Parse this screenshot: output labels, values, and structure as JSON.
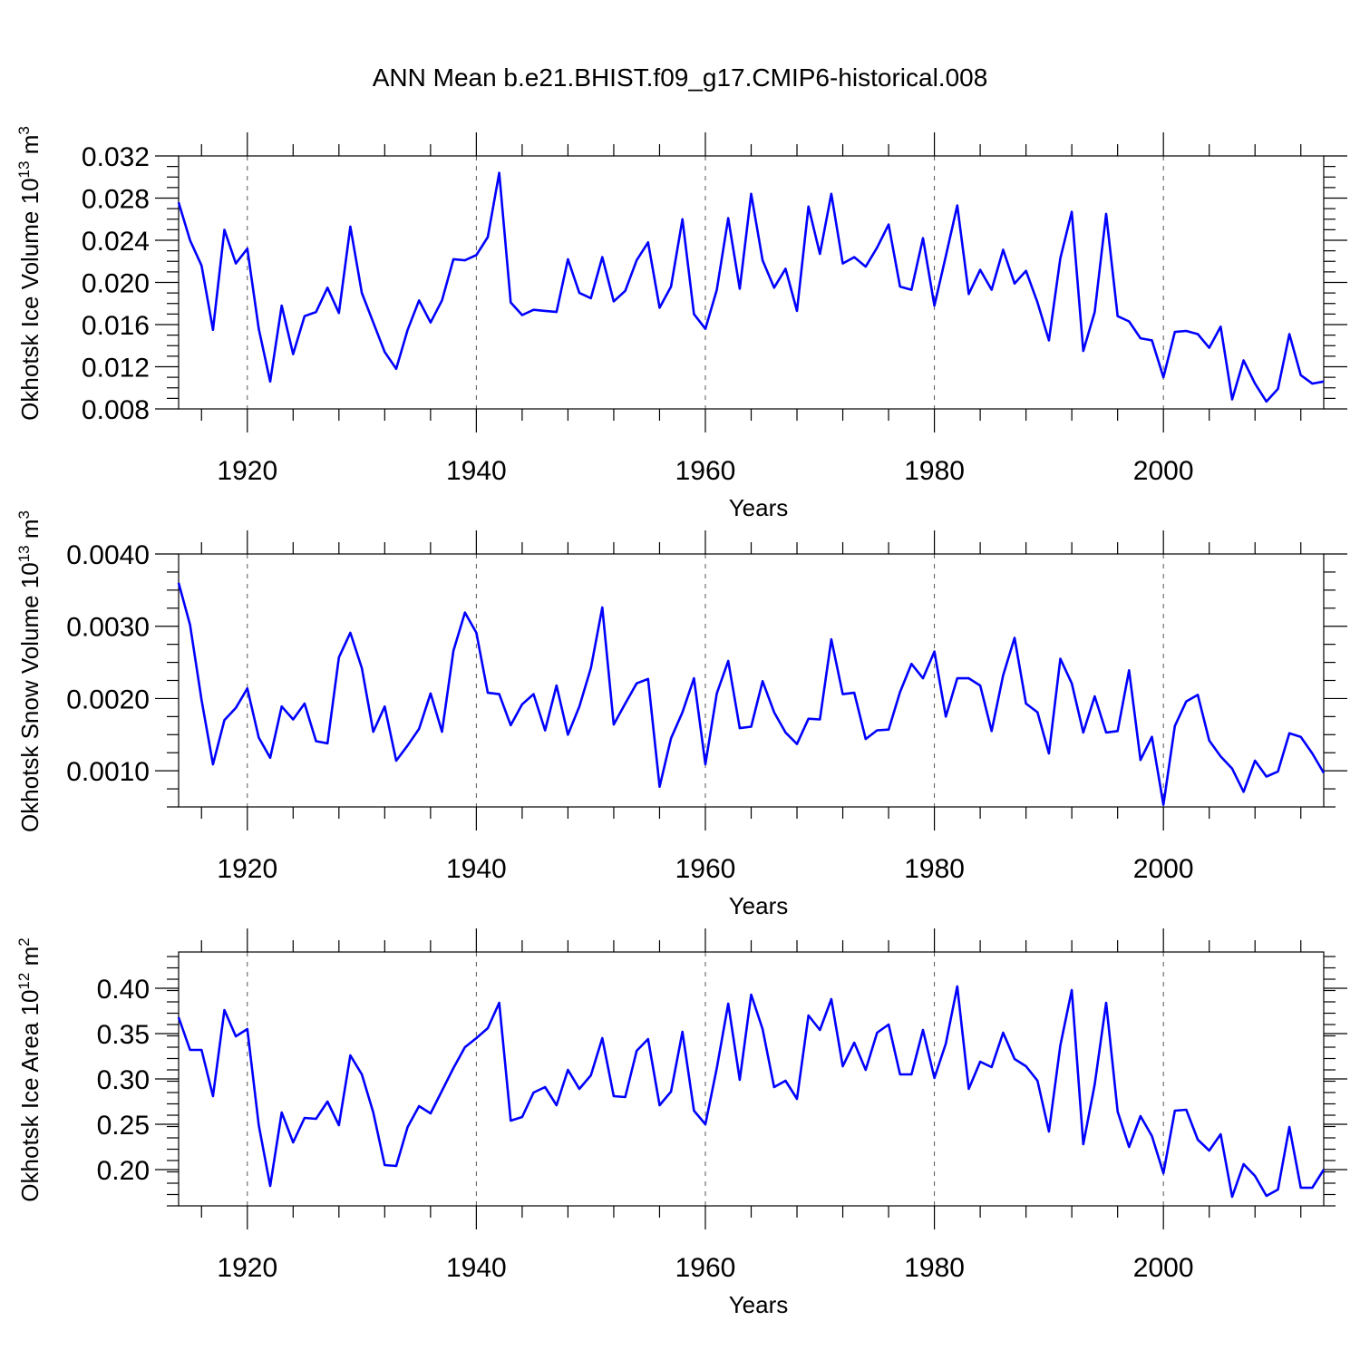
{
  "title": "ANN Mean b.e21.BHIST.f09_g17.CMIP6-historical.008",
  "chart_data": [
    {
      "type": "line",
      "xlabel": "Years",
      "ylabel": "Okhotsk Ice Volume 10",
      "ylabel_exp": "13",
      "ylabel_unit": " m",
      "ylabel_unit_exp": "3",
      "xlim": [
        1914,
        2014
      ],
      "ylim": [
        0.008,
        0.032
      ],
      "yticks": [
        0.008,
        0.012,
        0.016,
        0.02,
        0.024,
        0.028,
        0.032
      ],
      "ytick_labels": [
        "0.008",
        "0.012",
        "0.016",
        "0.020",
        "0.024",
        "0.028",
        "0.032"
      ],
      "xticks": [
        1920,
        1940,
        1960,
        1980,
        2000
      ],
      "xtick_labels": [
        "1920",
        "1940",
        "1960",
        "1980",
        "2000"
      ],
      "grid": "dashed vertical at major x ticks",
      "color": "#0000ff",
      "x": [
        1914,
        1915,
        1916,
        1917,
        1918,
        1919,
        1920,
        1921,
        1922,
        1923,
        1924,
        1925,
        1926,
        1927,
        1928,
        1929,
        1930,
        1931,
        1932,
        1933,
        1934,
        1935,
        1936,
        1937,
        1938,
        1939,
        1940,
        1941,
        1942,
        1943,
        1944,
        1945,
        1946,
        1947,
        1948,
        1949,
        1950,
        1951,
        1952,
        1953,
        1954,
        1955,
        1956,
        1957,
        1958,
        1959,
        1960,
        1961,
        1962,
        1963,
        1964,
        1965,
        1966,
        1967,
        1968,
        1969,
        1970,
        1971,
        1972,
        1973,
        1974,
        1975,
        1976,
        1977,
        1978,
        1979,
        1980,
        1981,
        1982,
        1983,
        1984,
        1985,
        1986,
        1987,
        1988,
        1989,
        1990,
        1991,
        1992,
        1993,
        1994,
        1995,
        1996,
        1997,
        1998,
        1999,
        2000,
        2001,
        2002,
        2003,
        2004,
        2005,
        2006,
        2007,
        2008,
        2009,
        2010,
        2011,
        2012,
        2013,
        2014
      ],
      "values": [
        0.0276,
        0.024,
        0.0216,
        0.0155,
        0.025,
        0.0218,
        0.0232,
        0.0156,
        0.0106,
        0.0178,
        0.0132,
        0.0168,
        0.0172,
        0.0195,
        0.0171,
        0.0253,
        0.019,
        0.0162,
        0.0134,
        0.0118,
        0.0155,
        0.0183,
        0.0162,
        0.0183,
        0.0222,
        0.0221,
        0.0226,
        0.0243,
        0.0304,
        0.0181,
        0.0169,
        0.0174,
        0.0173,
        0.0172,
        0.0222,
        0.019,
        0.0185,
        0.0224,
        0.0182,
        0.0192,
        0.0221,
        0.0238,
        0.0176,
        0.0196,
        0.026,
        0.017,
        0.0156,
        0.0193,
        0.0261,
        0.0194,
        0.0284,
        0.0221,
        0.0195,
        0.0213,
        0.0173,
        0.0272,
        0.0227,
        0.0284,
        0.0218,
        0.0224,
        0.0215,
        0.0233,
        0.0255,
        0.0196,
        0.0193,
        0.0242,
        0.0178,
        0.0225,
        0.0273,
        0.0189,
        0.0212,
        0.0193,
        0.0231,
        0.0199,
        0.0211,
        0.0181,
        0.0145,
        0.0223,
        0.0267,
        0.0135,
        0.0172,
        0.0265,
        0.0168,
        0.0163,
        0.0147,
        0.0145,
        0.011,
        0.0153,
        0.0154,
        0.0151,
        0.0138,
        0.0158,
        0.0089,
        0.0126,
        0.0104,
        0.0087,
        0.0099,
        0.0151,
        0.0112,
        0.0104,
        0.0106
      ]
    },
    {
      "type": "line",
      "xlabel": "Years",
      "ylabel": "Okhotsk Snow Volume 10",
      "ylabel_exp": "13",
      "ylabel_unit": " m",
      "ylabel_unit_exp": "3",
      "xlim": [
        1914,
        2014
      ],
      "ylim": [
        0.0005,
        0.004
      ],
      "yticks": [
        0.001,
        0.002,
        0.003,
        0.004
      ],
      "ytick_labels": [
        "0.0010",
        "0.0020",
        "0.0030",
        "0.0040"
      ],
      "xticks": [
        1920,
        1940,
        1960,
        1980,
        2000
      ],
      "xtick_labels": [
        "1920",
        "1940",
        "1960",
        "1980",
        "2000"
      ],
      "grid": "dashed vertical at major x ticks",
      "color": "#0000ff",
      "x": [
        1914,
        1915,
        1916,
        1917,
        1918,
        1919,
        1920,
        1921,
        1922,
        1923,
        1924,
        1925,
        1926,
        1927,
        1928,
        1929,
        1930,
        1931,
        1932,
        1933,
        1934,
        1935,
        1936,
        1937,
        1938,
        1939,
        1940,
        1941,
        1942,
        1943,
        1944,
        1945,
        1946,
        1947,
        1948,
        1949,
        1950,
        1951,
        1952,
        1953,
        1954,
        1955,
        1956,
        1957,
        1958,
        1959,
        1960,
        1961,
        1962,
        1963,
        1964,
        1965,
        1966,
        1967,
        1968,
        1969,
        1970,
        1971,
        1972,
        1973,
        1974,
        1975,
        1976,
        1977,
        1978,
        1979,
        1980,
        1981,
        1982,
        1983,
        1984,
        1985,
        1986,
        1987,
        1988,
        1989,
        1990,
        1991,
        1992,
        1993,
        1994,
        1995,
        1996,
        1997,
        1998,
        1999,
        2000,
        2001,
        2002,
        2003,
        2004,
        2005,
        2006,
        2007,
        2008,
        2009,
        2010,
        2011,
        2012,
        2013,
        2014
      ],
      "values": [
        0.0036,
        0.00302,
        0.00198,
        0.00109,
        0.0017,
        0.00187,
        0.00214,
        0.00146,
        0.00118,
        0.00189,
        0.00171,
        0.00193,
        0.00141,
        0.00138,
        0.00257,
        0.00291,
        0.00242,
        0.00154,
        0.00189,
        0.00114,
        0.00135,
        0.00158,
        0.00207,
        0.00154,
        0.00266,
        0.00319,
        0.00291,
        0.00208,
        0.00206,
        0.00163,
        0.00192,
        0.00206,
        0.00156,
        0.00218,
        0.0015,
        0.00189,
        0.00242,
        0.00326,
        0.00164,
        0.00193,
        0.00221,
        0.00227,
        0.00078,
        0.00145,
        0.00181,
        0.00228,
        0.00109,
        0.00207,
        0.00252,
        0.00159,
        0.00161,
        0.00224,
        0.00181,
        0.00153,
        0.00137,
        0.00172,
        0.00171,
        0.00282,
        0.00206,
        0.00208,
        0.00144,
        0.00156,
        0.00157,
        0.00209,
        0.00248,
        0.00228,
        0.00265,
        0.00175,
        0.00228,
        0.00228,
        0.00218,
        0.00155,
        0.00232,
        0.00284,
        0.00193,
        0.00181,
        0.00124,
        0.00255,
        0.00221,
        0.00153,
        0.00203,
        0.00153,
        0.00155,
        0.00239,
        0.00115,
        0.00147,
        0.00053,
        0.00162,
        0.00196,
        0.00205,
        0.00142,
        0.0012,
        0.00103,
        0.00071,
        0.00114,
        0.00092,
        0.00099,
        0.00152,
        0.00147,
        0.00124,
        0.00097
      ]
    },
    {
      "type": "line",
      "xlabel": "Years",
      "ylabel": "Okhotsk Ice Area 10",
      "ylabel_exp": "12",
      "ylabel_unit": " m",
      "ylabel_unit_exp": "2",
      "xlim": [
        1914,
        2014
      ],
      "ylim": [
        0.16,
        0.44
      ],
      "yticks": [
        0.2,
        0.25,
        0.3,
        0.35,
        0.4
      ],
      "ytick_labels": [
        "0.20",
        "0.25",
        "0.30",
        "0.35",
        "0.40"
      ],
      "xticks": [
        1920,
        1940,
        1960,
        1980,
        2000
      ],
      "xtick_labels": [
        "1920",
        "1940",
        "1960",
        "1980",
        "2000"
      ],
      "grid": "dashed vertical at major x ticks",
      "color": "#0000ff",
      "x": [
        1914,
        1915,
        1916,
        1917,
        1918,
        1919,
        1920,
        1921,
        1922,
        1923,
        1924,
        1925,
        1926,
        1927,
        1928,
        1929,
        1930,
        1931,
        1932,
        1933,
        1934,
        1935,
        1936,
        1937,
        1938,
        1939,
        1940,
        1941,
        1942,
        1943,
        1944,
        1945,
        1946,
        1947,
        1948,
        1949,
        1950,
        1951,
        1952,
        1953,
        1954,
        1955,
        1956,
        1957,
        1958,
        1959,
        1960,
        1961,
        1962,
        1963,
        1964,
        1965,
        1966,
        1967,
        1968,
        1969,
        1970,
        1971,
        1972,
        1973,
        1974,
        1975,
        1976,
        1977,
        1978,
        1979,
        1980,
        1981,
        1982,
        1983,
        1984,
        1985,
        1986,
        1987,
        1988,
        1989,
        1990,
        1991,
        1992,
        1993,
        1994,
        1995,
        1996,
        1997,
        1998,
        1999,
        2000,
        2001,
        2002,
        2003,
        2004,
        2005,
        2006,
        2007,
        2008,
        2009,
        2010,
        2011,
        2012,
        2013,
        2014
      ],
      "values": [
        0.368,
        0.332,
        0.332,
        0.281,
        0.376,
        0.347,
        0.355,
        0.249,
        0.182,
        0.263,
        0.23,
        0.257,
        0.256,
        0.275,
        0.249,
        0.326,
        0.305,
        0.263,
        0.205,
        0.204,
        0.247,
        0.27,
        0.262,
        0.287,
        0.312,
        0.335,
        0.345,
        0.356,
        0.384,
        0.254,
        0.258,
        0.285,
        0.291,
        0.271,
        0.31,
        0.289,
        0.304,
        0.345,
        0.281,
        0.28,
        0.331,
        0.344,
        0.271,
        0.286,
        0.352,
        0.265,
        0.25,
        0.312,
        0.383,
        0.299,
        0.393,
        0.355,
        0.291,
        0.298,
        0.278,
        0.37,
        0.354,
        0.388,
        0.314,
        0.34,
        0.31,
        0.351,
        0.36,
        0.305,
        0.305,
        0.354,
        0.301,
        0.339,
        0.402,
        0.289,
        0.319,
        0.313,
        0.351,
        0.322,
        0.314,
        0.298,
        0.242,
        0.337,
        0.398,
        0.228,
        0.294,
        0.384,
        0.264,
        0.225,
        0.259,
        0.237,
        0.196,
        0.265,
        0.266,
        0.233,
        0.221,
        0.239,
        0.17,
        0.206,
        0.193,
        0.171,
        0.178,
        0.247,
        0.18,
        0.18,
        0.2
      ]
    }
  ]
}
